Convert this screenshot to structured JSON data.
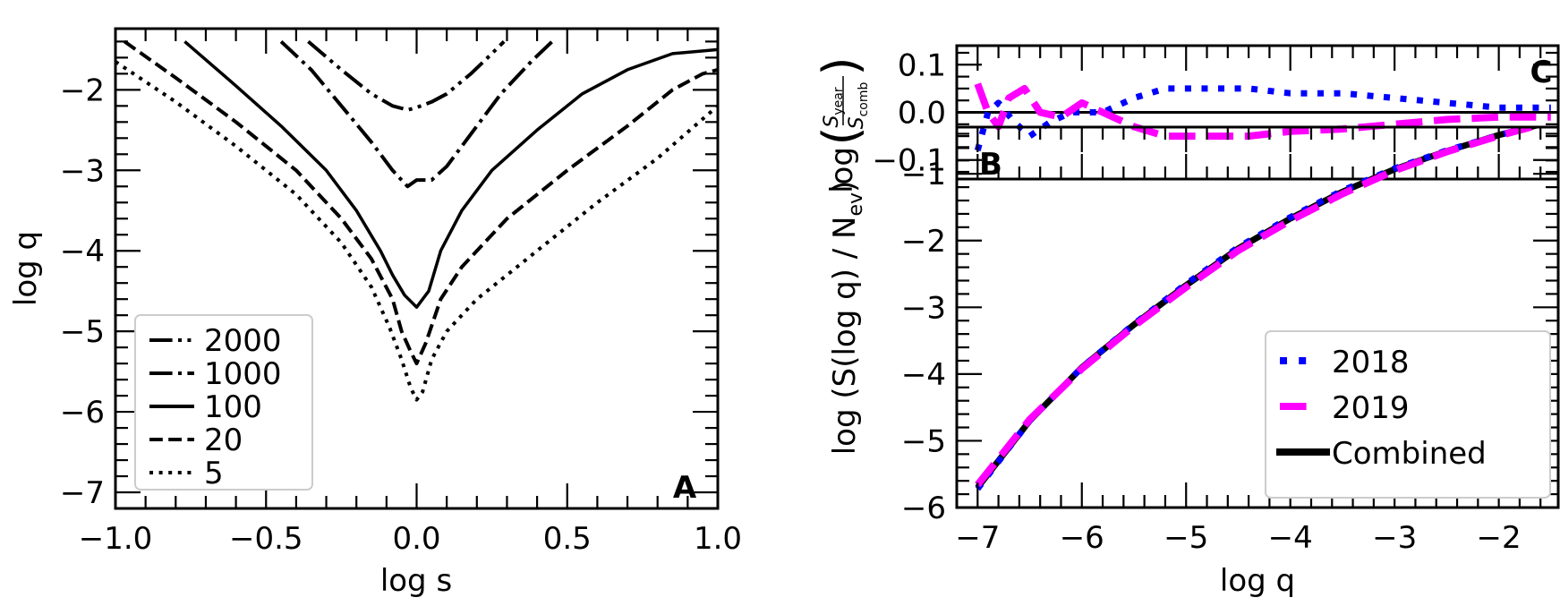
{
  "chart_data": [
    {
      "panel": "A",
      "type": "line",
      "xlabel": "log s",
      "ylabel": "log q",
      "xlim": [
        -1.0,
        1.0
      ],
      "ylim": [
        -7.2,
        -1.24
      ],
      "xticks": [
        -1.0,
        -0.5,
        0.0,
        0.5,
        1.0
      ],
      "xtick_labels": [
        "−1.0",
        "−0.5",
        "0.0",
        "0.5",
        "1.0"
      ],
      "yticks": [
        -7,
        -6,
        -5,
        -4,
        -3,
        -2
      ],
      "ytick_labels": [
        "−7",
        "−6",
        "−5",
        "−4",
        "−3",
        "−2"
      ],
      "legend_position": "lower-left",
      "series": [
        {
          "name": "2000",
          "style": "dashdotdot",
          "x": [
            -0.36,
            -0.25,
            -0.15,
            -0.08,
            -0.03,
            0.0,
            0.05,
            0.1,
            0.18,
            0.25,
            0.29
          ],
          "y": [
            -1.4,
            -1.75,
            -2.05,
            -2.2,
            -2.25,
            -2.22,
            -2.15,
            -2.05,
            -1.8,
            -1.55,
            -1.4
          ]
        },
        {
          "name": "1000",
          "style": "dashdot",
          "x": [
            -0.45,
            -0.35,
            -0.25,
            -0.15,
            -0.08,
            -0.03,
            0.0,
            0.05,
            0.1,
            0.18,
            0.28,
            0.38,
            0.45
          ],
          "y": [
            -1.4,
            -1.75,
            -2.2,
            -2.65,
            -3.0,
            -3.2,
            -3.12,
            -3.12,
            -2.95,
            -2.55,
            -2.05,
            -1.65,
            -1.4
          ]
        },
        {
          "name": "100",
          "style": "solid",
          "x": [
            -0.77,
            -0.6,
            -0.45,
            -0.3,
            -0.2,
            -0.12,
            -0.08,
            -0.04,
            0.0,
            0.04,
            0.08,
            0.15,
            0.25,
            0.4,
            0.55,
            0.7,
            0.85,
            1.0
          ],
          "y": [
            -1.4,
            -1.95,
            -2.45,
            -3.0,
            -3.5,
            -4.0,
            -4.3,
            -4.55,
            -4.7,
            -4.5,
            -4.0,
            -3.5,
            -3.0,
            -2.5,
            -2.05,
            -1.75,
            -1.55,
            -1.5
          ]
        },
        {
          "name": "20",
          "style": "dashed",
          "x": [
            -0.97,
            -0.8,
            -0.6,
            -0.4,
            -0.25,
            -0.15,
            -0.08,
            -0.05,
            -0.02,
            0.0,
            0.03,
            0.08,
            0.15,
            0.3,
            0.5,
            0.7,
            0.85,
            0.95,
            1.0
          ],
          "y": [
            -1.4,
            -1.85,
            -2.4,
            -3.0,
            -3.6,
            -4.1,
            -4.6,
            -5.0,
            -5.25,
            -5.4,
            -5.15,
            -4.6,
            -4.2,
            -3.6,
            -3.0,
            -2.45,
            -2.0,
            -1.8,
            -1.75
          ]
        },
        {
          "name": "5",
          "style": "dotted",
          "x": [
            -1.0,
            -0.8,
            -0.6,
            -0.4,
            -0.25,
            -0.15,
            -0.09,
            -0.05,
            -0.02,
            0.0,
            0.02,
            0.05,
            0.1,
            0.2,
            0.4,
            0.6,
            0.8,
            1.0
          ],
          "y": [
            -1.65,
            -2.15,
            -2.7,
            -3.3,
            -3.9,
            -4.45,
            -4.95,
            -5.35,
            -5.7,
            -5.85,
            -5.75,
            -5.35,
            -5.0,
            -4.6,
            -4.0,
            -3.4,
            -2.85,
            -2.2
          ]
        }
      ],
      "annotation": "A"
    },
    {
      "panel": "C",
      "type": "line",
      "xlabel": "",
      "ylabel": "log (S_year / S_comb)",
      "ylabel_parts": {
        "prefix": "log",
        "numerator": "S",
        "numerator_sub": "year",
        "denominator": "S",
        "denominator_sub": "comb"
      },
      "xlim": [
        -7.2,
        -1.43
      ],
      "ylim": [
        -0.14,
        0.14
      ],
      "yticks": [
        -0.1,
        0.0,
        0.1
      ],
      "ytick_labels": [
        "−0.1",
        "0.0",
        "0.1"
      ],
      "reference_line": 0.0,
      "series": [
        {
          "name": "2018",
          "color": "#0000ff",
          "style": "dotted",
          "x": [
            -7.0,
            -6.9,
            -6.8,
            -6.65,
            -6.5,
            -6.3,
            -6.1,
            -5.8,
            -5.5,
            -5.2,
            -4.8,
            -4.4,
            -4.0,
            -3.5,
            -3.0,
            -2.5,
            -2.0,
            -1.5
          ],
          "y": [
            -0.08,
            0.0,
            0.02,
            -0.02,
            -0.05,
            -0.02,
            0.0,
            0.0,
            0.03,
            0.05,
            0.05,
            0.05,
            0.04,
            0.04,
            0.03,
            0.02,
            0.01,
            0.01
          ]
        },
        {
          "name": "2019",
          "color": "#ff00ff",
          "style": "dashed",
          "x": [
            -7.0,
            -6.9,
            -6.8,
            -6.7,
            -6.55,
            -6.4,
            -6.2,
            -6.0,
            -5.8,
            -5.5,
            -5.2,
            -4.8,
            -4.4,
            -4.0,
            -3.5,
            -3.0,
            -2.5,
            -2.0,
            -1.5
          ],
          "y": [
            0.06,
            0.0,
            -0.03,
            0.03,
            0.05,
            0.0,
            -0.01,
            0.02,
            0.0,
            -0.03,
            -0.05,
            -0.05,
            -0.05,
            -0.04,
            -0.035,
            -0.025,
            -0.015,
            -0.01,
            -0.01
          ]
        }
      ],
      "annotation": "C"
    },
    {
      "panel": "B",
      "type": "line",
      "xlabel": "log q",
      "ylabel": "log (S(log q) / N_ev)",
      "ylabel_parts": {
        "main": "log (S(log q) / N",
        "sub": "ev",
        "close": ")"
      },
      "xlim": [
        -7.2,
        -1.43
      ],
      "ylim": [
        -6.0,
        -0.3
      ],
      "xticks": [
        -7,
        -6,
        -5,
        -4,
        -3,
        -2
      ],
      "xtick_labels": [
        "−7",
        "−6",
        "−5",
        "−4",
        "−3",
        "−2"
      ],
      "yticks": [
        -6,
        -5,
        -4,
        -3,
        -2,
        -1
      ],
      "ytick_labels": [
        "−6",
        "−5",
        "−4",
        "−3",
        "−2",
        "−1"
      ],
      "legend_position": "lower-right",
      "series": [
        {
          "name": "2018",
          "color": "#0000ff",
          "style": "dotted",
          "x": [
            -7.0,
            -6.5,
            -6.0,
            -5.5,
            -5.0,
            -4.5,
            -4.0,
            -3.5,
            -3.0,
            -2.5,
            -2.0,
            -1.5
          ],
          "y": [
            -5.72,
            -4.7,
            -3.9,
            -3.25,
            -2.65,
            -2.1,
            -1.65,
            -1.25,
            -0.92,
            -0.65,
            -0.42,
            -0.22
          ]
        },
        {
          "name": "2019",
          "color": "#ff00ff",
          "style": "dashed",
          "x": [
            -7.0,
            -6.5,
            -6.0,
            -5.5,
            -5.0,
            -4.5,
            -4.0,
            -3.5,
            -3.0,
            -2.5,
            -2.0,
            -1.5
          ],
          "y": [
            -5.66,
            -4.68,
            -3.92,
            -3.28,
            -2.7,
            -2.15,
            -1.7,
            -1.3,
            -0.95,
            -0.67,
            -0.43,
            -0.22
          ]
        },
        {
          "name": "Combined",
          "color": "#000000",
          "style": "solid",
          "x": [
            -7.0,
            -6.5,
            -6.0,
            -5.5,
            -5.0,
            -4.5,
            -4.0,
            -3.5,
            -3.0,
            -2.5,
            -2.0,
            -1.5
          ],
          "y": [
            -5.7,
            -4.7,
            -3.9,
            -3.26,
            -2.67,
            -2.12,
            -1.67,
            -1.27,
            -0.93,
            -0.66,
            -0.42,
            -0.22
          ]
        }
      ],
      "annotation": "B"
    }
  ],
  "colors": {
    "y2018": "#0000ff",
    "y2019": "#ff00ff",
    "combined": "#000000",
    "legend_border": "#cccccc"
  }
}
